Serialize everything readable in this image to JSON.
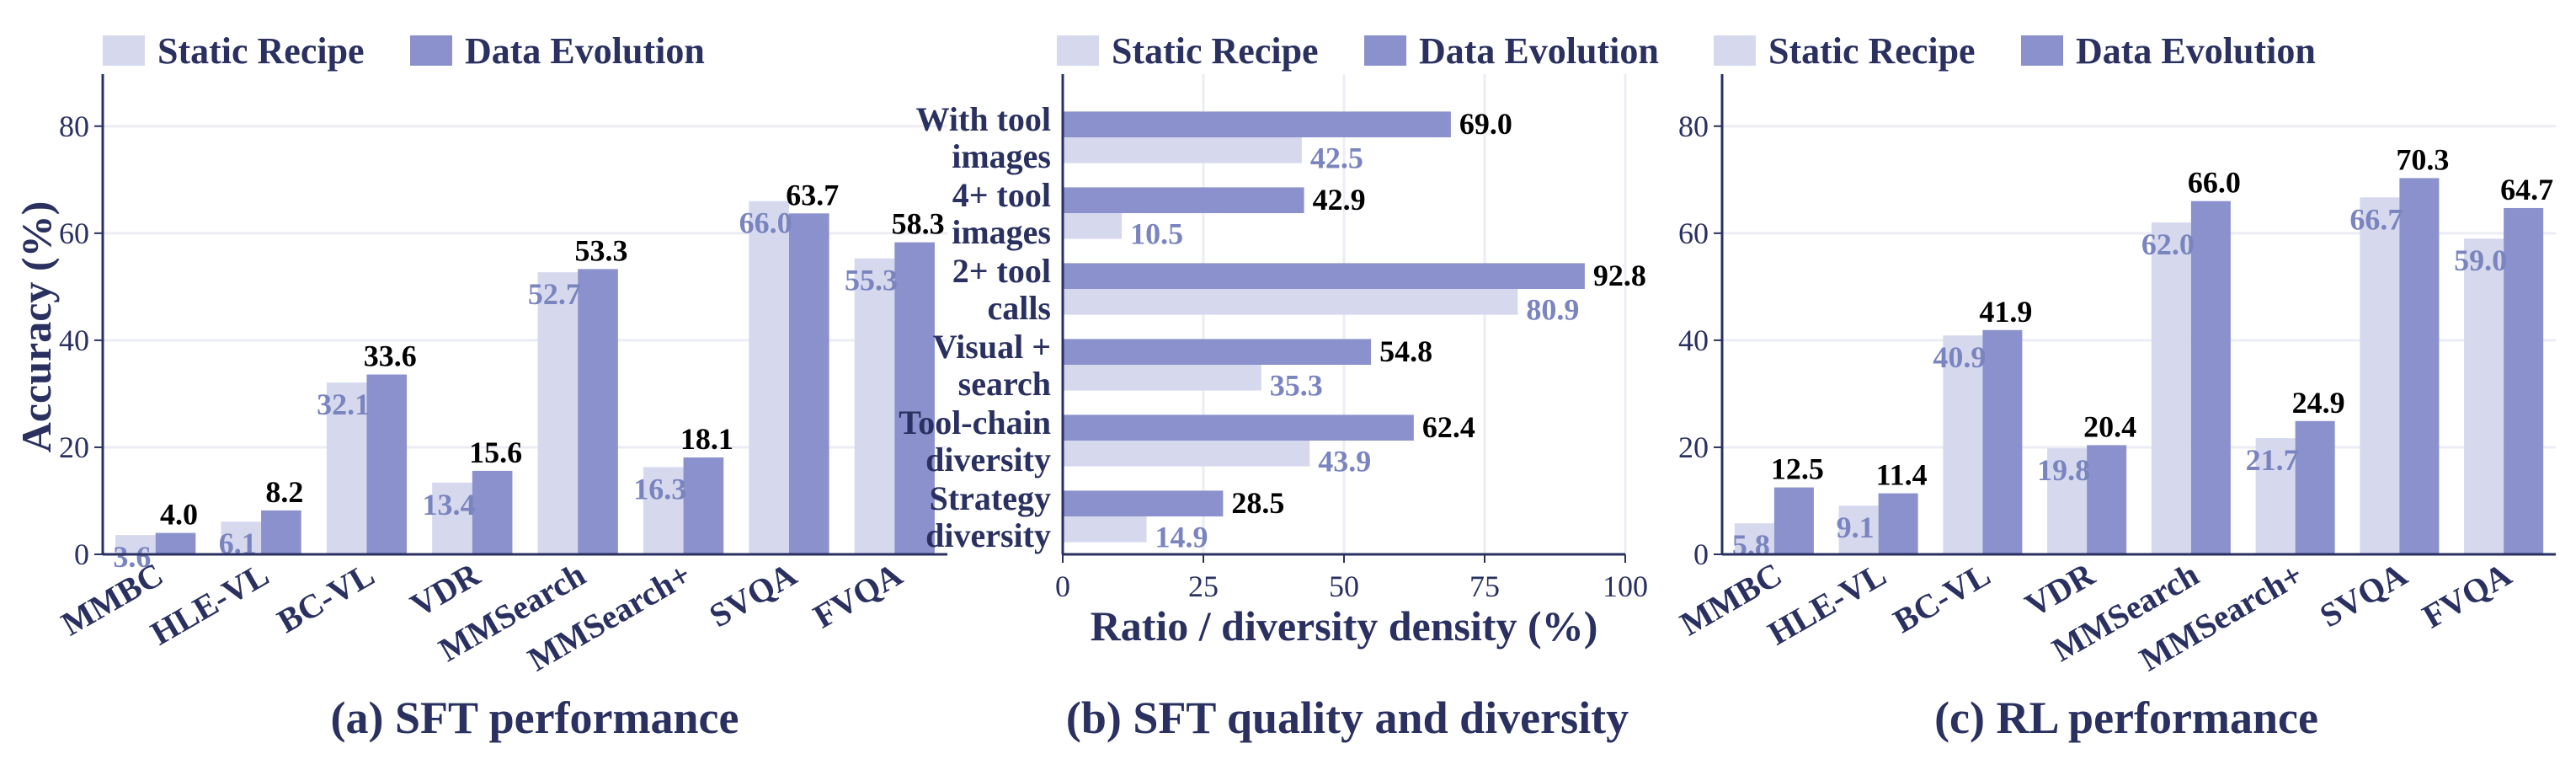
{
  "colors": {
    "static": "#d6d9ee",
    "evolution": "#8a91cc",
    "text_dark": "#2a3060",
    "static_label": "#7a84bf",
    "evolution_label": "#000000",
    "grid": "#ecedf4",
    "axis": "#2a3060"
  },
  "legend": {
    "static_label": "Static Recipe",
    "evolution_label": "Data Evolution"
  },
  "chart_data": [
    {
      "type": "bar",
      "orientation": "vertical",
      "caption": "(a) SFT performance",
      "ylabel": "Accuracy (%)",
      "xlabel": "",
      "ylim": [
        0,
        85
      ],
      "yticks": [
        0,
        20,
        40,
        60,
        80
      ],
      "grid": true,
      "legend_position": "top-left",
      "categories": [
        "MMBC",
        "HLE-VL",
        "BC-VL",
        "VDR",
        "MMSearch",
        "MMSearch+",
        "SVQA",
        "FVQA"
      ],
      "series": [
        {
          "name": "Static Recipe",
          "values": [
            3.6,
            6.1,
            32.1,
            13.4,
            52.7,
            16.3,
            66.0,
            55.3
          ]
        },
        {
          "name": "Data Evolution",
          "values": [
            4.0,
            8.2,
            33.6,
            15.6,
            53.3,
            18.1,
            63.7,
            58.3
          ]
        }
      ]
    },
    {
      "type": "bar",
      "orientation": "horizontal",
      "caption": "(b) SFT quality and diversity",
      "xlabel": "Ratio / diversity density (%)",
      "ylabel": "",
      "xlim": [
        0,
        100
      ],
      "xticks": [
        0,
        25,
        50,
        75,
        100
      ],
      "grid": true,
      "legend_position": "top-left",
      "categories": [
        [
          "With tool",
          "images"
        ],
        [
          "4+ tool",
          "images"
        ],
        [
          "2+ tool",
          "calls"
        ],
        [
          "Visual +",
          "search"
        ],
        [
          "Tool-chain",
          "diversity"
        ],
        [
          "Strategy",
          "diversity"
        ]
      ],
      "series": [
        {
          "name": "Static Recipe",
          "values": [
            42.5,
            10.5,
            80.9,
            35.3,
            43.9,
            14.9
          ]
        },
        {
          "name": "Data Evolution",
          "values": [
            69.0,
            42.9,
            92.8,
            54.8,
            62.4,
            28.5
          ]
        }
      ]
    },
    {
      "type": "bar",
      "orientation": "vertical",
      "caption": "(c) RL performance",
      "ylabel": "",
      "xlabel": "",
      "ylim": [
        0,
        85
      ],
      "yticks": [
        0,
        20,
        40,
        60,
        80
      ],
      "grid": true,
      "legend_position": "top-left",
      "categories": [
        "MMBC",
        "HLE-VL",
        "BC-VL",
        "VDR",
        "MMSearch",
        "MMSearch+",
        "SVQA",
        "FVQA"
      ],
      "series": [
        {
          "name": "Static Recipe",
          "values": [
            5.8,
            9.1,
            40.9,
            19.8,
            62.0,
            21.7,
            66.7,
            59.0
          ]
        },
        {
          "name": "Data Evolution",
          "values": [
            12.5,
            11.4,
            41.9,
            20.4,
            66.0,
            24.9,
            70.3,
            64.7
          ]
        }
      ]
    }
  ]
}
